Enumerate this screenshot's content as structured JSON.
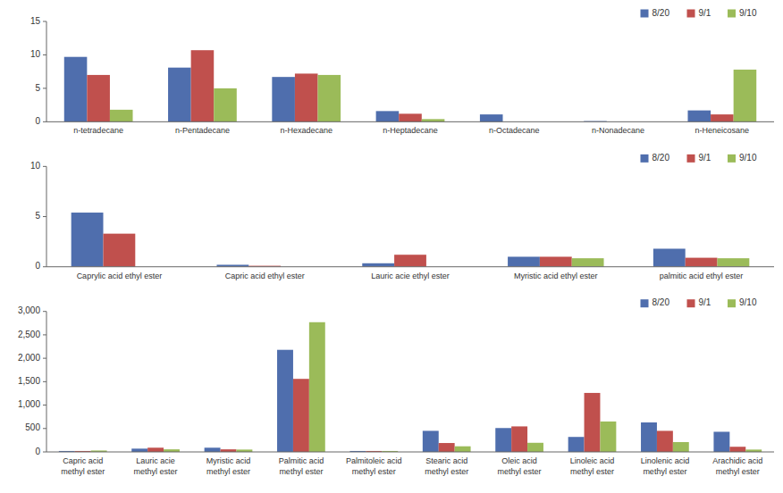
{
  "chart_data": [
    {
      "type": "bar",
      "categories": [
        "n-tetradecane",
        "n-Pentadecane",
        "n-Hexadecane",
        "n-Heptadecane",
        "n-Octadecane",
        "n-Nonadecane",
        "n-Heneicosane"
      ],
      "series": [
        {
          "name": "8/20",
          "color": "#4F6EAD",
          "values": [
            9.7,
            8.1,
            6.7,
            1.6,
            1.1,
            0.1,
            1.7
          ]
        },
        {
          "name": "9/1",
          "color": "#C0504D",
          "values": [
            7.0,
            10.7,
            7.2,
            1.2,
            0.0,
            0.0,
            1.1
          ]
        },
        {
          "name": "9/10",
          "color": "#9BBB59",
          "values": [
            1.8,
            5.0,
            7.0,
            0.4,
            0.0,
            0.0,
            7.8
          ]
        }
      ],
      "ylim": [
        0,
        15
      ],
      "yticks": [
        0,
        5,
        10,
        15
      ],
      "grid": false,
      "legend": "upper right"
    },
    {
      "type": "bar",
      "categories": [
        "Caprylic acid ethyl ester",
        "Capric acid ethyl ester",
        "Lauric acie ethyl ester",
        "Myristic acid ethyl ester",
        "palmitic acid ethyl ester"
      ],
      "series": [
        {
          "name": "8/20",
          "color": "#4F6EAD",
          "values": [
            5.4,
            0.2,
            0.35,
            1.0,
            1.8
          ]
        },
        {
          "name": "9/1",
          "color": "#C0504D",
          "values": [
            3.3,
            0.1,
            1.2,
            1.0,
            0.9
          ]
        },
        {
          "name": "9/10",
          "color": "#9BBB59",
          "values": [
            0.0,
            0.0,
            0.0,
            0.85,
            0.85
          ]
        }
      ],
      "ylim": [
        0,
        10
      ],
      "yticks": [
        0,
        5,
        10
      ],
      "grid": false,
      "legend": "upper right"
    },
    {
      "type": "bar",
      "categories": [
        "Capric acid\nmethyl ester",
        "Lauric acie\nmethyl ester",
        "Myristic acid\nmethyl ester",
        "Palmitic acid\nmethyl ester",
        "Palmitoleic acid\nmethyl ester",
        "Stearic acid\nmethyl ester",
        "Oleic acid\nmethyl ester",
        "Linoleic acid\nmethyl ester",
        "Linolenic acid\nmethyl ester",
        "Arachidic acid\nmethyl ester"
      ],
      "series": [
        {
          "name": "8/20",
          "color": "#4F6EAD",
          "values": [
            20,
            70,
            90,
            2180,
            20,
            450,
            510,
            320,
            630,
            430
          ]
        },
        {
          "name": "9/1",
          "color": "#C0504D",
          "values": [
            20,
            90,
            55,
            1560,
            20,
            190,
            545,
            1260,
            450,
            110
          ]
        },
        {
          "name": "9/10",
          "color": "#9BBB59",
          "values": [
            30,
            55,
            50,
            2770,
            20,
            120,
            195,
            650,
            210,
            50
          ]
        }
      ],
      "ylim": [
        0,
        3000
      ],
      "yticks": [
        0,
        500,
        {
          "value": 1000,
          "label": "1,000"
        },
        {
          "value": 1500,
          "label": "1,500"
        },
        {
          "value": 2000,
          "label": "2,000"
        },
        {
          "value": 2500,
          "label": "2,500"
        },
        {
          "value": 3000,
          "label": "3,000"
        }
      ],
      "grid": false,
      "legend": "upper right"
    }
  ]
}
